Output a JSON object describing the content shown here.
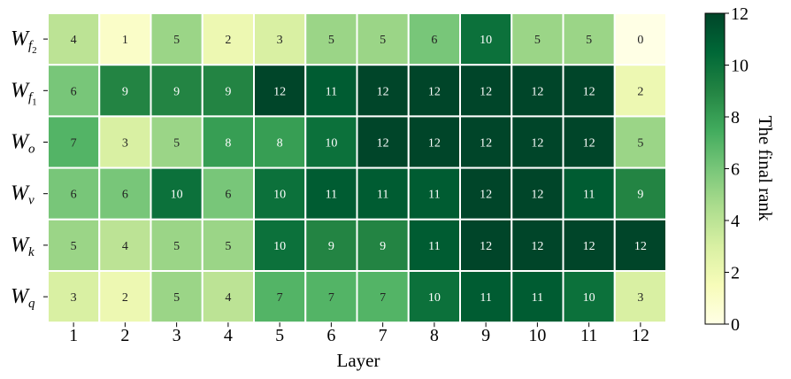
{
  "chart_data": {
    "type": "heatmap",
    "xlabel": "Layer",
    "x_categories": [
      "1",
      "2",
      "3",
      "4",
      "5",
      "6",
      "7",
      "8",
      "9",
      "10",
      "11",
      "12"
    ],
    "y_categories": [
      {
        "main": "W",
        "sub": "f",
        "subsub": "2"
      },
      {
        "main": "W",
        "sub": "f",
        "subsub": "1"
      },
      {
        "main": "W",
        "sub": "o",
        "subsub": ""
      },
      {
        "main": "W",
        "sub": "v",
        "subsub": ""
      },
      {
        "main": "W",
        "sub": "k",
        "subsub": ""
      },
      {
        "main": "W",
        "sub": "q",
        "subsub": ""
      }
    ],
    "values": [
      [
        4,
        1,
        5,
        2,
        3,
        5,
        5,
        6,
        10,
        5,
        5,
        0
      ],
      [
        6,
        9,
        9,
        9,
        12,
        11,
        12,
        12,
        12,
        12,
        12,
        2
      ],
      [
        7,
        3,
        5,
        8,
        8,
        10,
        12,
        12,
        12,
        12,
        12,
        5
      ],
      [
        6,
        6,
        10,
        6,
        10,
        11,
        11,
        11,
        12,
        12,
        11,
        9
      ],
      [
        5,
        4,
        5,
        5,
        10,
        9,
        9,
        11,
        12,
        12,
        12,
        12
      ],
      [
        3,
        2,
        5,
        4,
        7,
        7,
        7,
        10,
        11,
        11,
        10,
        3
      ]
    ],
    "colorbar": {
      "label": "The final rank",
      "range": [
        0,
        12
      ],
      "ticks": [
        "0",
        "2",
        "4",
        "6",
        "8",
        "10",
        "12"
      ],
      "colormap": [
        "#ffffe5",
        "#f7fcb9",
        "#d9f0a3",
        "#addd8e",
        "#78c679",
        "#41ab5d",
        "#238443",
        "#006837",
        "#004529"
      ]
    }
  }
}
